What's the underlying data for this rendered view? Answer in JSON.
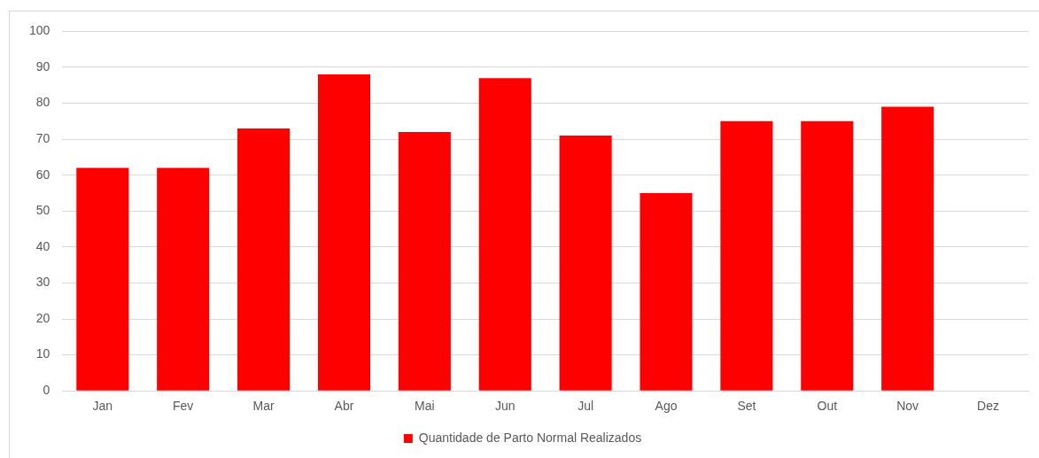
{
  "chart_data": {
    "type": "bar",
    "categories": [
      "Jan",
      "Fev",
      "Mar",
      "Abr",
      "Mai",
      "Jun",
      "Jul",
      "Ago",
      "Set",
      "Out",
      "Nov",
      "Dez"
    ],
    "series": [
      {
        "name": "Quantidade de Parto Normal Realizados",
        "color": "#ff0000",
        "values": [
          62,
          62,
          73,
          88,
          72,
          87,
          71,
          55,
          75,
          75,
          79,
          null
        ]
      }
    ],
    "ylim": [
      0,
      100
    ],
    "yticks": [
      0,
      10,
      20,
      30,
      40,
      50,
      60,
      70,
      80,
      90,
      100
    ],
    "grid": "y",
    "legend": "bottom"
  }
}
